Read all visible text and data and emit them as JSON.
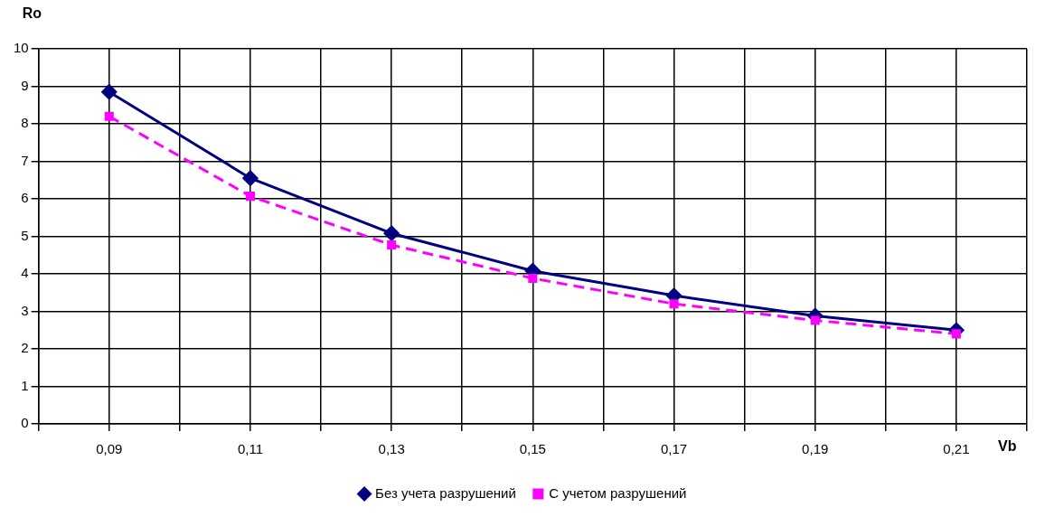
{
  "chart_data": {
    "type": "line",
    "ylabel": "Ro",
    "xlabel": "Vb",
    "x": [
      0.09,
      0.11,
      0.13,
      0.15,
      0.17,
      0.19,
      0.21
    ],
    "series": [
      {
        "name": "Без учета разрушений",
        "color": "#000080",
        "marker": "diamond",
        "line_style": "solid",
        "values": [
          8.85,
          6.55,
          5.08,
          4.08,
          3.42,
          2.88,
          2.5
        ]
      },
      {
        "name": "С учетом разрушений",
        "color": "#ff00ff",
        "marker": "square",
        "line_style": "dashed",
        "values": [
          8.2,
          6.07,
          4.77,
          3.88,
          3.2,
          2.76,
          2.4
        ]
      }
    ],
    "xlim": [
      0.08,
      0.22
    ],
    "xticks": [
      {
        "value": 0.08,
        "label": null
      },
      {
        "value": 0.09,
        "label": "0,09"
      },
      {
        "value": 0.1,
        "label": null
      },
      {
        "value": 0.11,
        "label": "0,11"
      },
      {
        "value": 0.12,
        "label": null
      },
      {
        "value": 0.13,
        "label": "0,13"
      },
      {
        "value": 0.14,
        "label": null
      },
      {
        "value": 0.15,
        "label": "0,15"
      },
      {
        "value": 0.16,
        "label": null
      },
      {
        "value": 0.17,
        "label": "0,17"
      },
      {
        "value": 0.18,
        "label": null
      },
      {
        "value": 0.19,
        "label": "0,19"
      },
      {
        "value": 0.2,
        "label": null
      },
      {
        "value": 0.21,
        "label": "0,21"
      },
      {
        "value": 0.22,
        "label": null
      }
    ],
    "ylim": [
      0,
      10
    ],
    "yticks": [
      0,
      1,
      2,
      3,
      4,
      5,
      6,
      7,
      8,
      9,
      10
    ],
    "grid": true,
    "legend": "bottom"
  }
}
